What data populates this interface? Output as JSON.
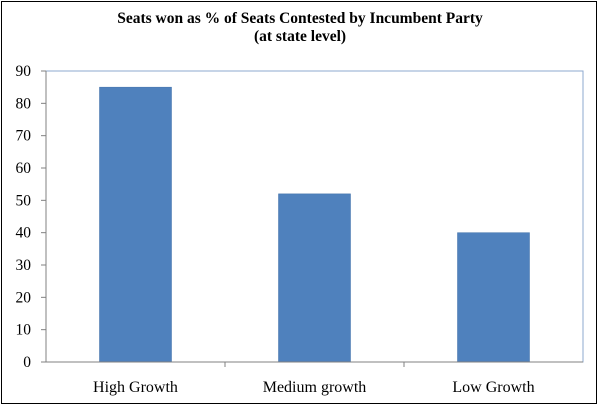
{
  "chart_data": {
    "type": "bar",
    "title": "Seats won as % of Seats Contested by Incumbent Party",
    "subtitle": "(at state level)",
    "categories": [
      "High Growth",
      "Medium growth",
      "Low Growth"
    ],
    "values": [
      85,
      52,
      40
    ],
    "xlabel": "",
    "ylabel": "",
    "ylim": [
      0,
      90
    ],
    "yticks": [
      0,
      10,
      20,
      30,
      40,
      50,
      60,
      70,
      80,
      90
    ],
    "grid": false,
    "legend": "none",
    "colors": {
      "bar": "#4F81BD",
      "bar_edge": "#3F6FA8",
      "plot_border": "#8EA9CF",
      "axis": "#808080"
    }
  }
}
